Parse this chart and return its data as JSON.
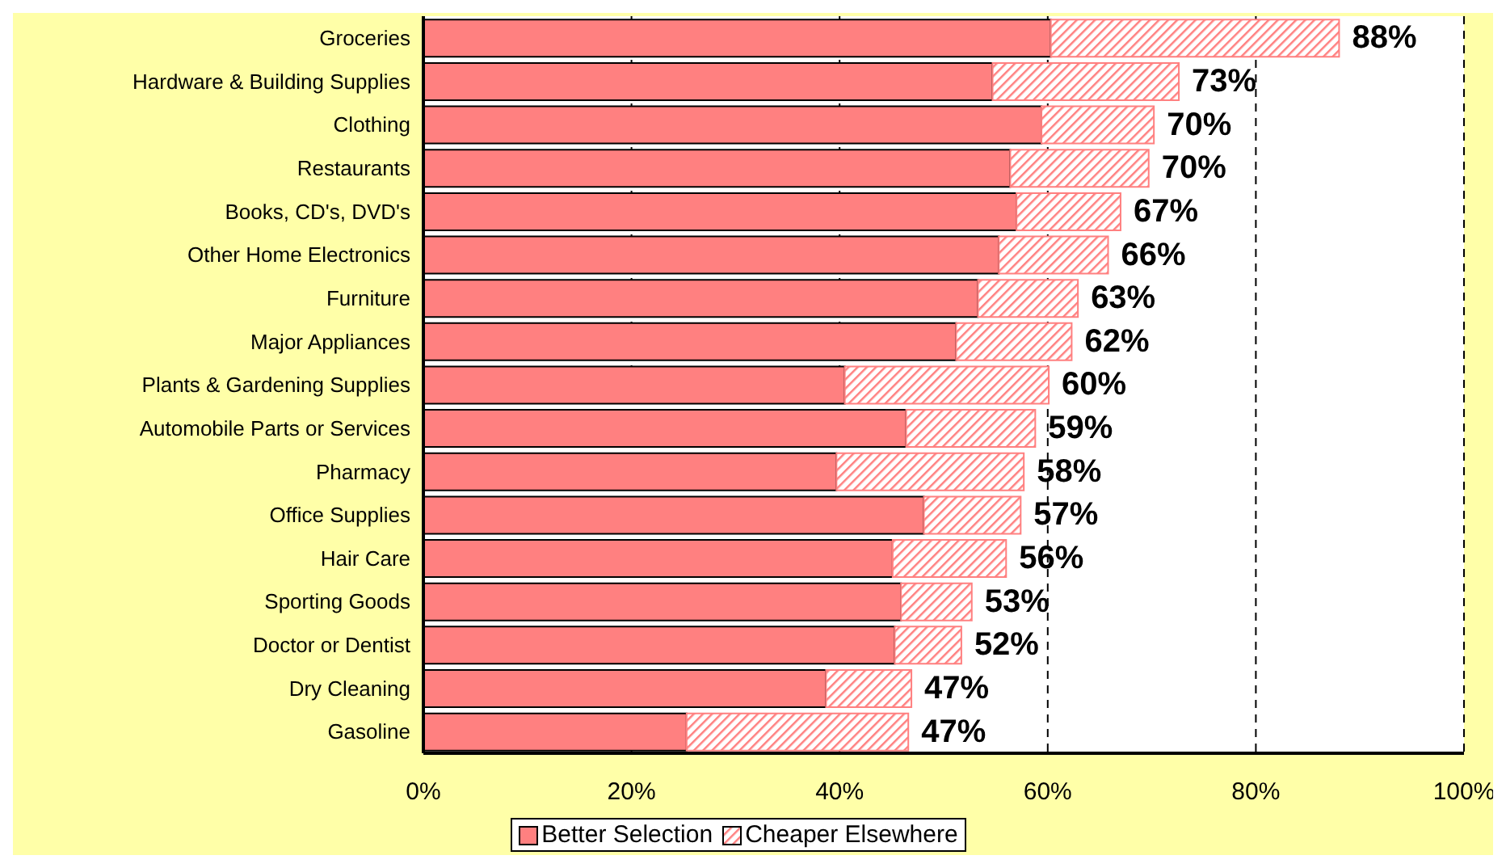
{
  "chart_data": {
    "type": "bar",
    "orientation": "horizontal",
    "stacked": true,
    "categories": [
      "Groceries",
      "Hardware & Building Supplies",
      "Clothing",
      "Restaurants",
      "Books, CD's, DVD's ",
      "Other Home Electronics",
      "Furniture",
      "Major Appliances",
      "Plants & Gardening Supplies",
      "Automobile Parts or Services",
      "Pharmacy",
      "Office Supplies",
      "Hair Care",
      "Sporting Goods",
      "Doctor or Dentist",
      "Dry Cleaning",
      "Gasoline"
    ],
    "series": [
      {
        "name": "Better Selection",
        "color": "#ff8080",
        "values": [
          60.3,
          54.7,
          59.4,
          56.4,
          57.0,
          55.3,
          53.3,
          51.2,
          40.5,
          46.4,
          39.7,
          48.1,
          45.1,
          45.9,
          45.3,
          38.7,
          25.3
        ]
      },
      {
        "name": "Cheaper Elsewhere",
        "color": "#ff8080",
        "values": [
          27.7,
          17.9,
          10.8,
          13.3,
          10.0,
          10.5,
          9.6,
          11.1,
          19.6,
          12.4,
          18.0,
          9.3,
          10.9,
          6.8,
          6.4,
          8.2,
          21.3
        ]
      }
    ],
    "totals": [
      "88%",
      "73%",
      "70%",
      "70%",
      "67%",
      "66%",
      "63%",
      "62%",
      "60%",
      "59%",
      "58%",
      "57%",
      "56%",
      "53%",
      "52%",
      "47%",
      "47%"
    ],
    "xlim": [
      0,
      100
    ],
    "xticks": [
      {
        "value": 0,
        "label": "0%"
      },
      {
        "value": 20,
        "label": "20%"
      },
      {
        "value": 40,
        "label": "40%"
      },
      {
        "value": 60,
        "label": "60%"
      },
      {
        "value": 80,
        "label": "80%"
      },
      {
        "value": 100,
        "label": "100%"
      }
    ],
    "grid": "x",
    "legend": "bottom"
  }
}
